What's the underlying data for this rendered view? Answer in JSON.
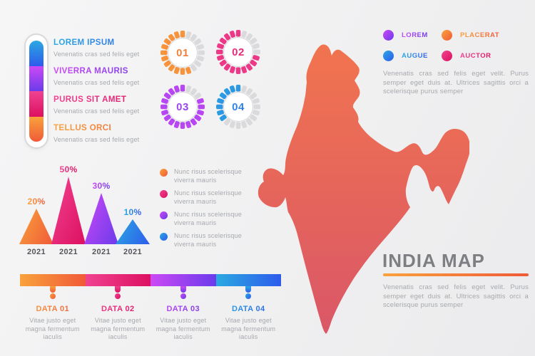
{
  "colors": {
    "blue_start": "#2BA9E1",
    "blue_end": "#2E5BEC",
    "purple_start": "#CC49F5",
    "purple_end": "#6B3BEB",
    "pink_start": "#F04391",
    "pink_end": "#DD1060",
    "orange_start": "#F9A23C",
    "orange_end": "#F05A38",
    "map_top": "#F1744F",
    "map_bottom": "#DA5767",
    "gray_tick": "#DADADD",
    "title_gray": "#7D7F82",
    "text_gray": "#A6A9AD"
  },
  "thermometer": {
    "segments": [
      "blue",
      "purple",
      "pink",
      "orange"
    ]
  },
  "left_legend": {
    "items": [
      {
        "title": "LOREM IPSUM",
        "desc": "Venenatis cras sed felis eget",
        "color": "blue"
      },
      {
        "title": "VIVERRA MAURIS",
        "desc": "Venenatis cras sed felis eget",
        "color": "purple"
      },
      {
        "title": "PURUS SIT AMET",
        "desc": "Venenatis cras sed felis eget",
        "color": "pink"
      },
      {
        "title": "TELLUS ORCI",
        "desc": "Venenatis cras sed felis eget",
        "color": "orange"
      }
    ]
  },
  "badges": [
    {
      "number": "01",
      "color": "orange",
      "filled_ticks": 12,
      "total_ticks": 20
    },
    {
      "number": "02",
      "color": "pink",
      "filled_ticks": 15,
      "total_ticks": 20
    },
    {
      "number": "03",
      "color": "purple",
      "filled_ticks": 17,
      "total_ticks": 20
    },
    {
      "number": "04",
      "color": "blue",
      "filled_ticks": 8,
      "total_ticks": 20
    }
  ],
  "chart_data": {
    "type": "bar",
    "style": "triangle-peaks",
    "categories": [
      "2021",
      "2021",
      "2021",
      "2021"
    ],
    "values": [
      20,
      50,
      30,
      10
    ],
    "value_labels": [
      "20%",
      "50%",
      "30%",
      "10%"
    ],
    "series_colors": [
      "orange",
      "pink",
      "purple",
      "blue"
    ],
    "display_heights": [
      50,
      95,
      72,
      35
    ],
    "unit": "%",
    "ylim": [
      0,
      50
    ],
    "title": "",
    "xlabel": "",
    "ylabel": ""
  },
  "bullets": [
    {
      "color": "orange",
      "text": "Nunc risus scelerisque viverra mauris"
    },
    {
      "color": "pink",
      "text": "Nunc risus scelerisque viverra mauris"
    },
    {
      "color": "purple",
      "text": "Nunc risus scelerisque viverra mauris"
    },
    {
      "color": "blue",
      "text": "Nunc risus scelerisque viverra mauris"
    }
  ],
  "timeline": {
    "items": [
      {
        "label": "DATA 01",
        "desc": "Vitae justo eget magna fermentum iaculis",
        "color": "orange"
      },
      {
        "label": "DATA 02",
        "desc": "Vitae justo eget magna fermentum iaculis",
        "color": "pink"
      },
      {
        "label": "DATA 03",
        "desc": "Vitae justo eget magna fermentum iaculis",
        "color": "purple"
      },
      {
        "label": "DATA 04",
        "desc": "Vitae justo eget magna fermentum iaculis",
        "color": "blue"
      }
    ]
  },
  "map_panel": {
    "legend": [
      {
        "label": "LOREM",
        "color": "purple"
      },
      {
        "label": "PLACERAT",
        "color": "orange"
      },
      {
        "label": "AUGUE",
        "color": "blue"
      },
      {
        "label": "AUCTOR",
        "color": "pink"
      }
    ],
    "paragraph_top": "Venenatis cras sed felis eget velit. Purus semper eget duis at. Ultrices sagittis orci a scelerisque purus semper",
    "title": "INDIA MAP",
    "paragraph_bottom": "Venenatis cras sed felis eget velit. Purus semper eget duis at. Ultrices sagittis orci a scelerisque purus semper"
  }
}
